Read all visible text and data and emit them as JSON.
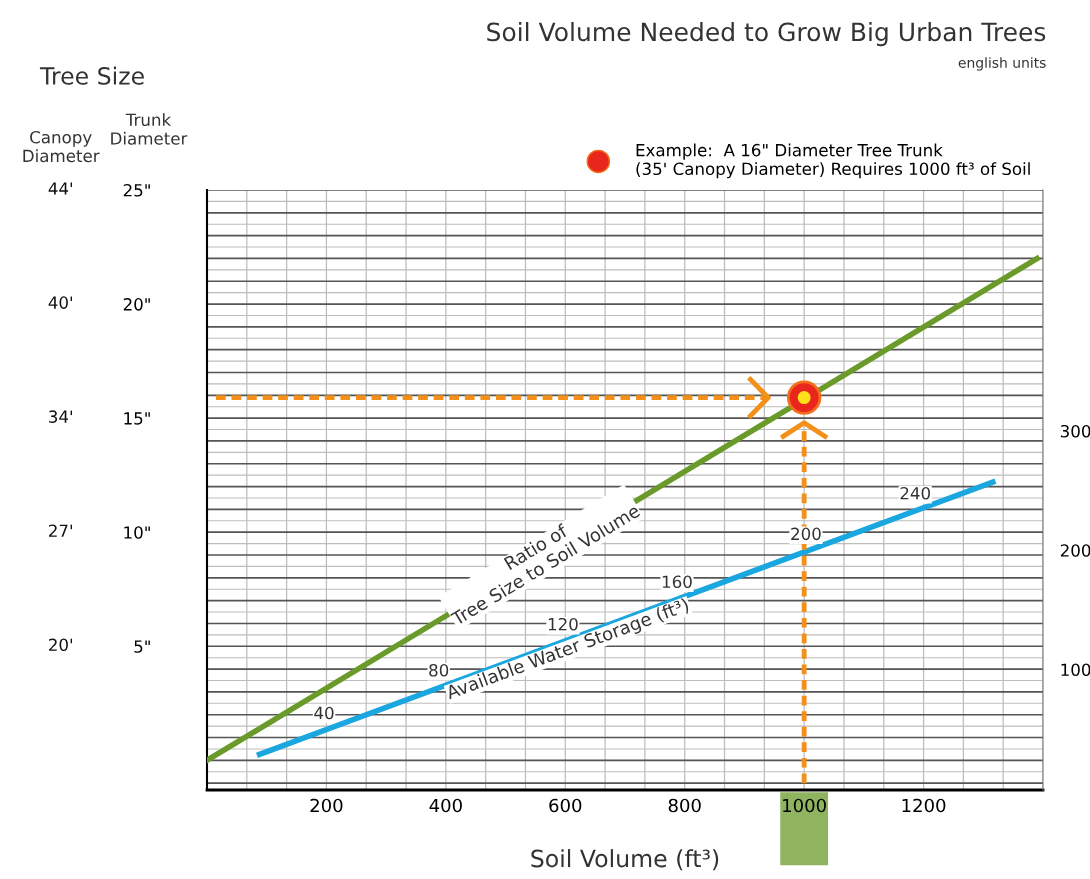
{
  "chart_data": {
    "type": "line",
    "title": "Soil Volume Needed to Grow Big Urban Trees",
    "subtitle": "english units",
    "xlabel": "Soil Volume (ft³)",
    "ylabel": "Trunk\nDiameter",
    "xlim": [
      0,
      1400
    ],
    "xticks": [
      200,
      400,
      600,
      800,
      1000,
      1200
    ],
    "ylim": [
      -1.3,
      25
    ],
    "yticks": [
      {
        "value": 5,
        "label": "5\""
      },
      {
        "value": 10,
        "label": "10\""
      },
      {
        "value": 15,
        "label": "15\""
      },
      {
        "value": 20,
        "label": "20\""
      },
      {
        "value": 25,
        "label": "25\""
      }
    ],
    "y2lim": [
      -1,
      502
    ],
    "y2ticks": [
      100,
      200,
      300
    ],
    "grid": true,
    "legend": "top right",
    "marker": "none",
    "line_style": "solid",
    "series": [
      {
        "color": "#6a9a2a",
        "x": [
          0,
          1390
        ],
        "values": [
          0,
          22
        ]
      },
      {
        "color": "#1aa7e0",
        "x": [
          88,
          1316
        ],
        "values": [
          0.26,
          12.2
        ]
      },
      {
        "type": "scatter",
        "marker": "circle",
        "name": "Example:  A 16\" Diameter Tree Trunk\n(35' Canopy Diameter) Requires 1000 ft³ of Soil",
        "color": "#e8261c",
        "x": [
          1000
        ],
        "values": [
          15.9
        ]
      }
    ],
    "ref_lines": [
      {
        "axis": "y",
        "value": 15.9,
        "color": "#f39019",
        "line_style": "dashed"
      },
      {
        "axis": "x",
        "value": 1000,
        "color": "#f39019",
        "line_style": "dashed"
      }
    ],
    "annotations": [
      "Tree Size",
      "Canopy\nDiameter",
      "44'",
      "40'",
      "34'",
      "27'",
      "20'",
      {
        "text": "Ratio of\nTree Size to Soil Volume",
        "x": 560,
        "y": 8.9
      },
      {
        "text": "Available Water Storage (ft³)",
        "x": 600,
        "y": 5.2
      },
      {
        "text": "40",
        "x": 196,
        "y": 1.31
      },
      {
        "text": "80",
        "x": 388,
        "y": 3.18
      },
      {
        "text": "120",
        "x": 596,
        "y": 5.2
      },
      {
        "text": "160",
        "x": 787,
        "y": 7.06
      },
      {
        "text": "200",
        "x": 1003,
        "y": 9.16
      },
      {
        "text": "240",
        "x": 1186,
        "y": 10.94
      }
    ]
  }
}
